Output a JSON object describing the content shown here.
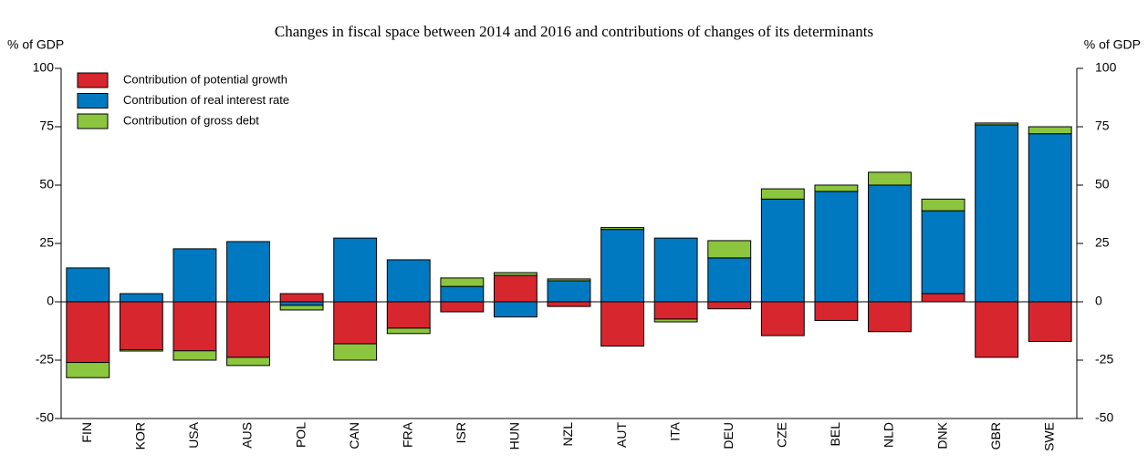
{
  "chart_data": {
    "type": "bar",
    "stacked": true,
    "subtitle": "Changes in fiscal space between 2014 and 2016 and contributions of changes of its determinants",
    "y_label": "% of GDP",
    "y2_label": "% of GDP",
    "categories": [
      "FIN",
      "KOR",
      "USA",
      "AUS",
      "POL",
      "CAN",
      "FRA",
      "ISR",
      "HUN",
      "NZL",
      "AUT",
      "ITA",
      "DEU",
      "CZE",
      "BEL",
      "NLD",
      "DNK",
      "GBR",
      "SWE"
    ],
    "series": [
      {
        "name": "Contribution of potential growth",
        "color": "#d7262e",
        "values": [
          -26,
          -20.5,
          -21,
          -23.8,
          3.5,
          -18,
          -11.3,
          -4.3,
          11.3,
          -2,
          -19,
          -7.4,
          -3,
          -14.5,
          -8,
          -12.8,
          3.5,
          -23.8,
          -17
        ]
      },
      {
        "name": "Contribution of real interest rate",
        "color": "#0079c1",
        "values": [
          14.5,
          3.5,
          22.7,
          25.8,
          -1.5,
          27.3,
          18,
          6.6,
          -6.5,
          9,
          31,
          27.3,
          18.8,
          44,
          47.3,
          50,
          35.5,
          75.8,
          72
        ]
      },
      {
        "name": "Contribution of gross debt",
        "color": "#8cc63f",
        "values": [
          -6.5,
          -0.6,
          -4,
          -3.5,
          -2,
          -7,
          -2.3,
          3.6,
          1.2,
          0.8,
          0.8,
          -1.2,
          7.4,
          4.4,
          2.7,
          5.5,
          5,
          0.8,
          3
        ]
      }
    ],
    "ylim": [
      -50,
      100
    ],
    "yticks": [
      -50,
      -25,
      0,
      25,
      50,
      75,
      100
    ],
    "y2lim": [
      -50,
      100
    ],
    "y2ticks": [
      -50,
      -25,
      0,
      25,
      50,
      75,
      100
    ],
    "legend": "top-left",
    "grid": false
  }
}
